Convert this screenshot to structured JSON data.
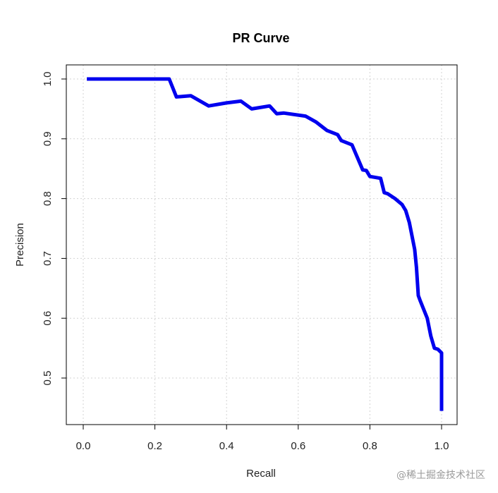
{
  "chart_data": {
    "type": "line",
    "title": "PR Curve",
    "xlabel": "Recall",
    "ylabel": "Precision",
    "xlim": [
      0.0,
      1.0
    ],
    "ylim": [
      0.44,
      1.02
    ],
    "xticks": [
      "0.0",
      "0.2",
      "0.4",
      "0.6",
      "0.8",
      "1.0"
    ],
    "yticks": [
      "0.5",
      "0.6",
      "0.7",
      "0.8",
      "0.9",
      "1.0"
    ],
    "grid": true,
    "series": [
      {
        "color": "#0000ee",
        "x": [
          0.01,
          0.05,
          0.1,
          0.15,
          0.2,
          0.24,
          0.26,
          0.3,
          0.35,
          0.4,
          0.44,
          0.47,
          0.52,
          0.54,
          0.56,
          0.62,
          0.65,
          0.68,
          0.71,
          0.72,
          0.75,
          0.78,
          0.79,
          0.8,
          0.83,
          0.84,
          0.85,
          0.87,
          0.89,
          0.9,
          0.91,
          0.925,
          0.93,
          0.935,
          0.94,
          0.96,
          0.97,
          0.98,
          0.99,
          1.0,
          1.0,
          1.0
        ],
        "y": [
          1.0,
          1.0,
          1.0,
          1.0,
          1.0,
          1.0,
          0.97,
          0.972,
          0.955,
          0.96,
          0.963,
          0.95,
          0.955,
          0.942,
          0.943,
          0.938,
          0.928,
          0.914,
          0.907,
          0.897,
          0.89,
          0.848,
          0.847,
          0.837,
          0.834,
          0.81,
          0.808,
          0.8,
          0.79,
          0.78,
          0.76,
          0.715,
          0.685,
          0.638,
          0.63,
          0.6,
          0.57,
          0.55,
          0.548,
          0.542,
          0.5,
          0.445
        ]
      }
    ]
  },
  "watermark": "@稀土掘金技术社区"
}
